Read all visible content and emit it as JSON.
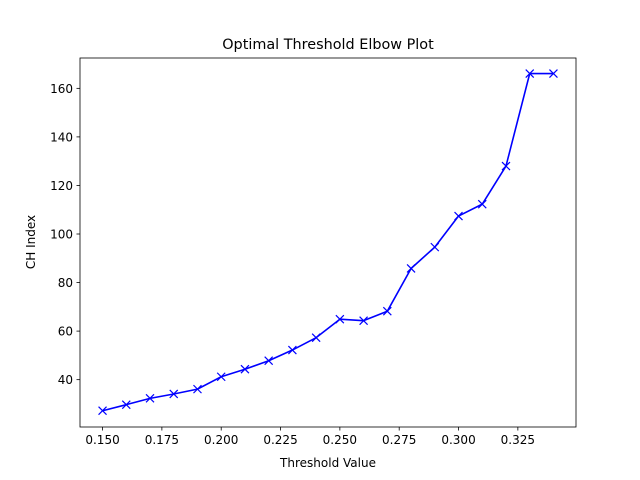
{
  "chart_data": {
    "type": "line",
    "title": "Optimal Threshold Elbow Plot",
    "xlabel": "Threshold Value",
    "ylabel": "CH Index",
    "xlim": [
      0.1405,
      0.3495
    ],
    "ylim": [
      20.5,
      172.5
    ],
    "x_ticks": [
      0.15,
      0.175,
      0.2,
      0.225,
      0.25,
      0.275,
      0.3,
      0.325
    ],
    "x_tick_labels": [
      "0.150",
      "0.175",
      "0.200",
      "0.225",
      "0.250",
      "0.275",
      "0.300",
      "0.325"
    ],
    "y_ticks": [
      40,
      60,
      80,
      100,
      120,
      140,
      160
    ],
    "y_tick_labels": [
      "40",
      "60",
      "80",
      "100",
      "120",
      "140",
      "160"
    ],
    "grid": false,
    "marker": "x",
    "series": [
      {
        "color": "#0000ff",
        "x": [
          0.15,
          0.16,
          0.17,
          0.18,
          0.19,
          0.2,
          0.21,
          0.22,
          0.23,
          0.24,
          0.25,
          0.26,
          0.27,
          0.28,
          0.29,
          0.3,
          0.31,
          0.32,
          0.33,
          0.34
        ],
        "y": [
          27.2,
          29.7,
          32.3,
          34.1,
          36.1,
          41.2,
          44.3,
          47.8,
          52.2,
          57.3,
          64.9,
          64.3,
          68.2,
          85.8,
          94.6,
          107.4,
          112.3,
          128.0,
          166.1,
          166.1
        ]
      }
    ]
  }
}
